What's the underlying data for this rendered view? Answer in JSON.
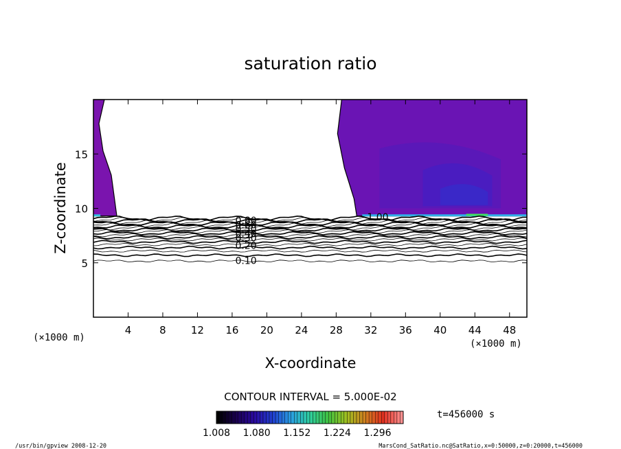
{
  "chart_data": {
    "type": "contour",
    "title": "saturation ratio",
    "xlabel": "X-coordinate",
    "ylabel": "Z-coordinate",
    "x_unit_left": "(×1000 m)",
    "x_unit_right": "(×1000 m)",
    "xlim": [
      0,
      50
    ],
    "ylim": [
      0,
      20
    ],
    "x_ticks": [
      4,
      8,
      12,
      16,
      20,
      24,
      28,
      32,
      36,
      40,
      44,
      48
    ],
    "x_tick_labels": [
      "4",
      "8",
      "12",
      "16",
      "20",
      "24",
      "28",
      "32",
      "36",
      "40",
      "44",
      "48"
    ],
    "y_ticks": [
      5,
      10,
      15
    ],
    "y_tick_labels": [
      "5",
      "10",
      "15"
    ],
    "contour_interval_text": "CONTOUR INTERVAL = 5.000E-02",
    "contour_levels": [
      0.05,
      0.1,
      0.15,
      0.2,
      0.25,
      0.3,
      0.35,
      0.4,
      0.45,
      0.5,
      0.55,
      0.6,
      0.65,
      0.7,
      0.75,
      0.8,
      0.85,
      0.9,
      0.95,
      1.0
    ],
    "contour_labels": [
      {
        "text": "0.10",
        "x": 17.6,
        "y": 5.2
      },
      {
        "text": "0.20",
        "x": 17.6,
        "y": 6.6
      },
      {
        "text": "0.30",
        "x": 17.6,
        "y": 7.3
      },
      {
        "text": "0.40",
        "x": 17.6,
        "y": 7.7
      },
      {
        "text": "0.50",
        "x": 17.6,
        "y": 8.1
      },
      {
        "text": "0.60",
        "x": 17.6,
        "y": 8.5
      },
      {
        "text": "0.80",
        "x": 17.6,
        "y": 8.9
      },
      {
        "text": "1.00",
        "x": 32.8,
        "y": 9.2
      }
    ],
    "shaded_regions": [
      {
        "name": "supersaturated-left",
        "x_range": [
          0,
          2.3
        ],
        "z_range": [
          9.3,
          20
        ],
        "color": "#7a14ae"
      },
      {
        "name": "supersaturated-right",
        "x_range": [
          28.0,
          50
        ],
        "z_range": [
          9.3,
          20
        ],
        "color": "#6a14b4"
      }
    ],
    "colorbar": {
      "ticks": [
        1.008,
        1.08,
        1.152,
        1.224,
        1.296
      ],
      "tick_labels": [
        "1.008",
        "1.080",
        "1.152",
        "1.224",
        "1.296"
      ],
      "colors": [
        "#000000",
        "#1a0050",
        "#2a0aa0",
        "#2040d0",
        "#2aa0e0",
        "#30d0a0",
        "#40c040",
        "#a0c020",
        "#d08020",
        "#e03020",
        "#ff9090"
      ]
    },
    "time_label": "t=456000 s"
  },
  "footer": {
    "left": "/usr/bin/gpview  2008-12-20",
    "right": "MarsCond_SatRatio.nc@SatRatio,x=0:50000,z=0:20000,t=456000"
  }
}
